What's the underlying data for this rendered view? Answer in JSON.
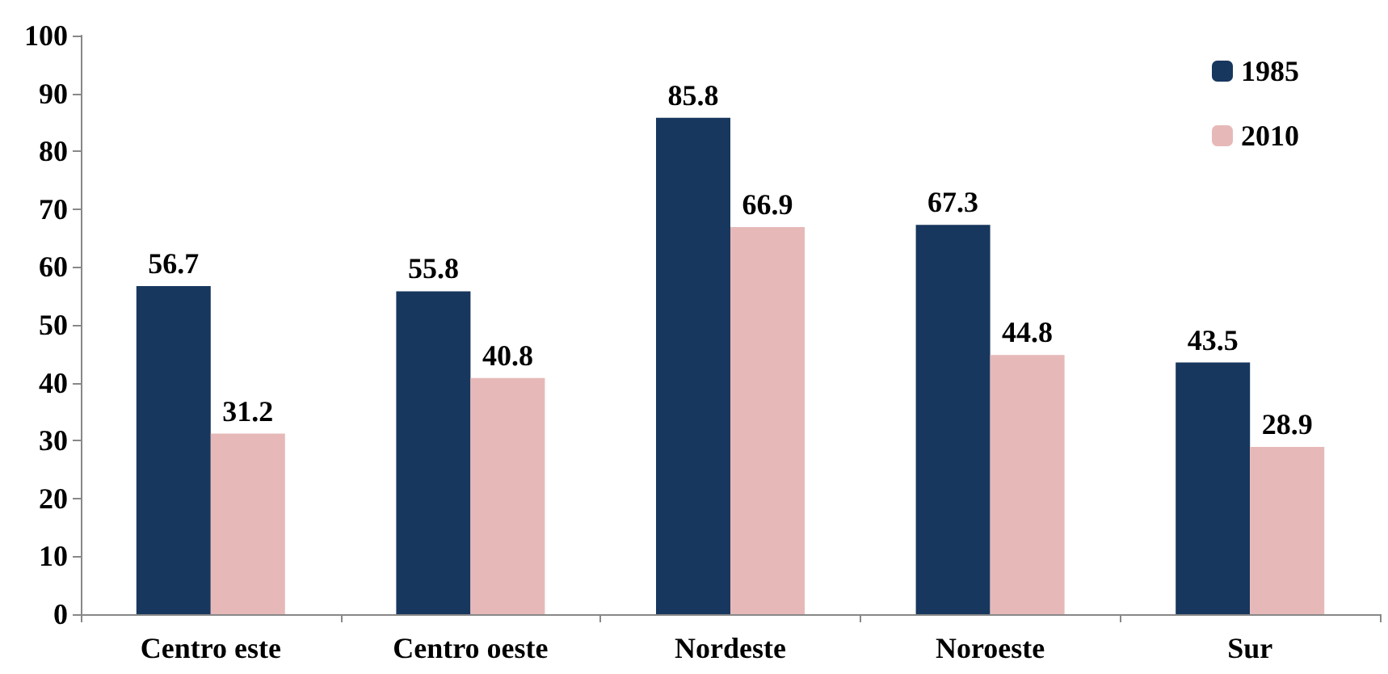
{
  "chart_data": {
    "type": "bar",
    "categories": [
      "Centro este",
      "Centro oeste",
      "Nordeste",
      "Noroeste",
      "Sur"
    ],
    "series": [
      {
        "name": "1985",
        "color": "#17375e",
        "values": [
          56.7,
          55.8,
          85.8,
          67.3,
          43.5
        ]
      },
      {
        "name": "2010",
        "color": "#e6b9b8",
        "values": [
          31.2,
          40.8,
          66.9,
          44.8,
          28.9
        ]
      }
    ],
    "ylim": [
      0,
      100
    ],
    "yticks": [
      0,
      10,
      20,
      30,
      40,
      50,
      60,
      70,
      80,
      90,
      100
    ],
    "grid": false,
    "legend": "top right",
    "data_labels": true
  }
}
